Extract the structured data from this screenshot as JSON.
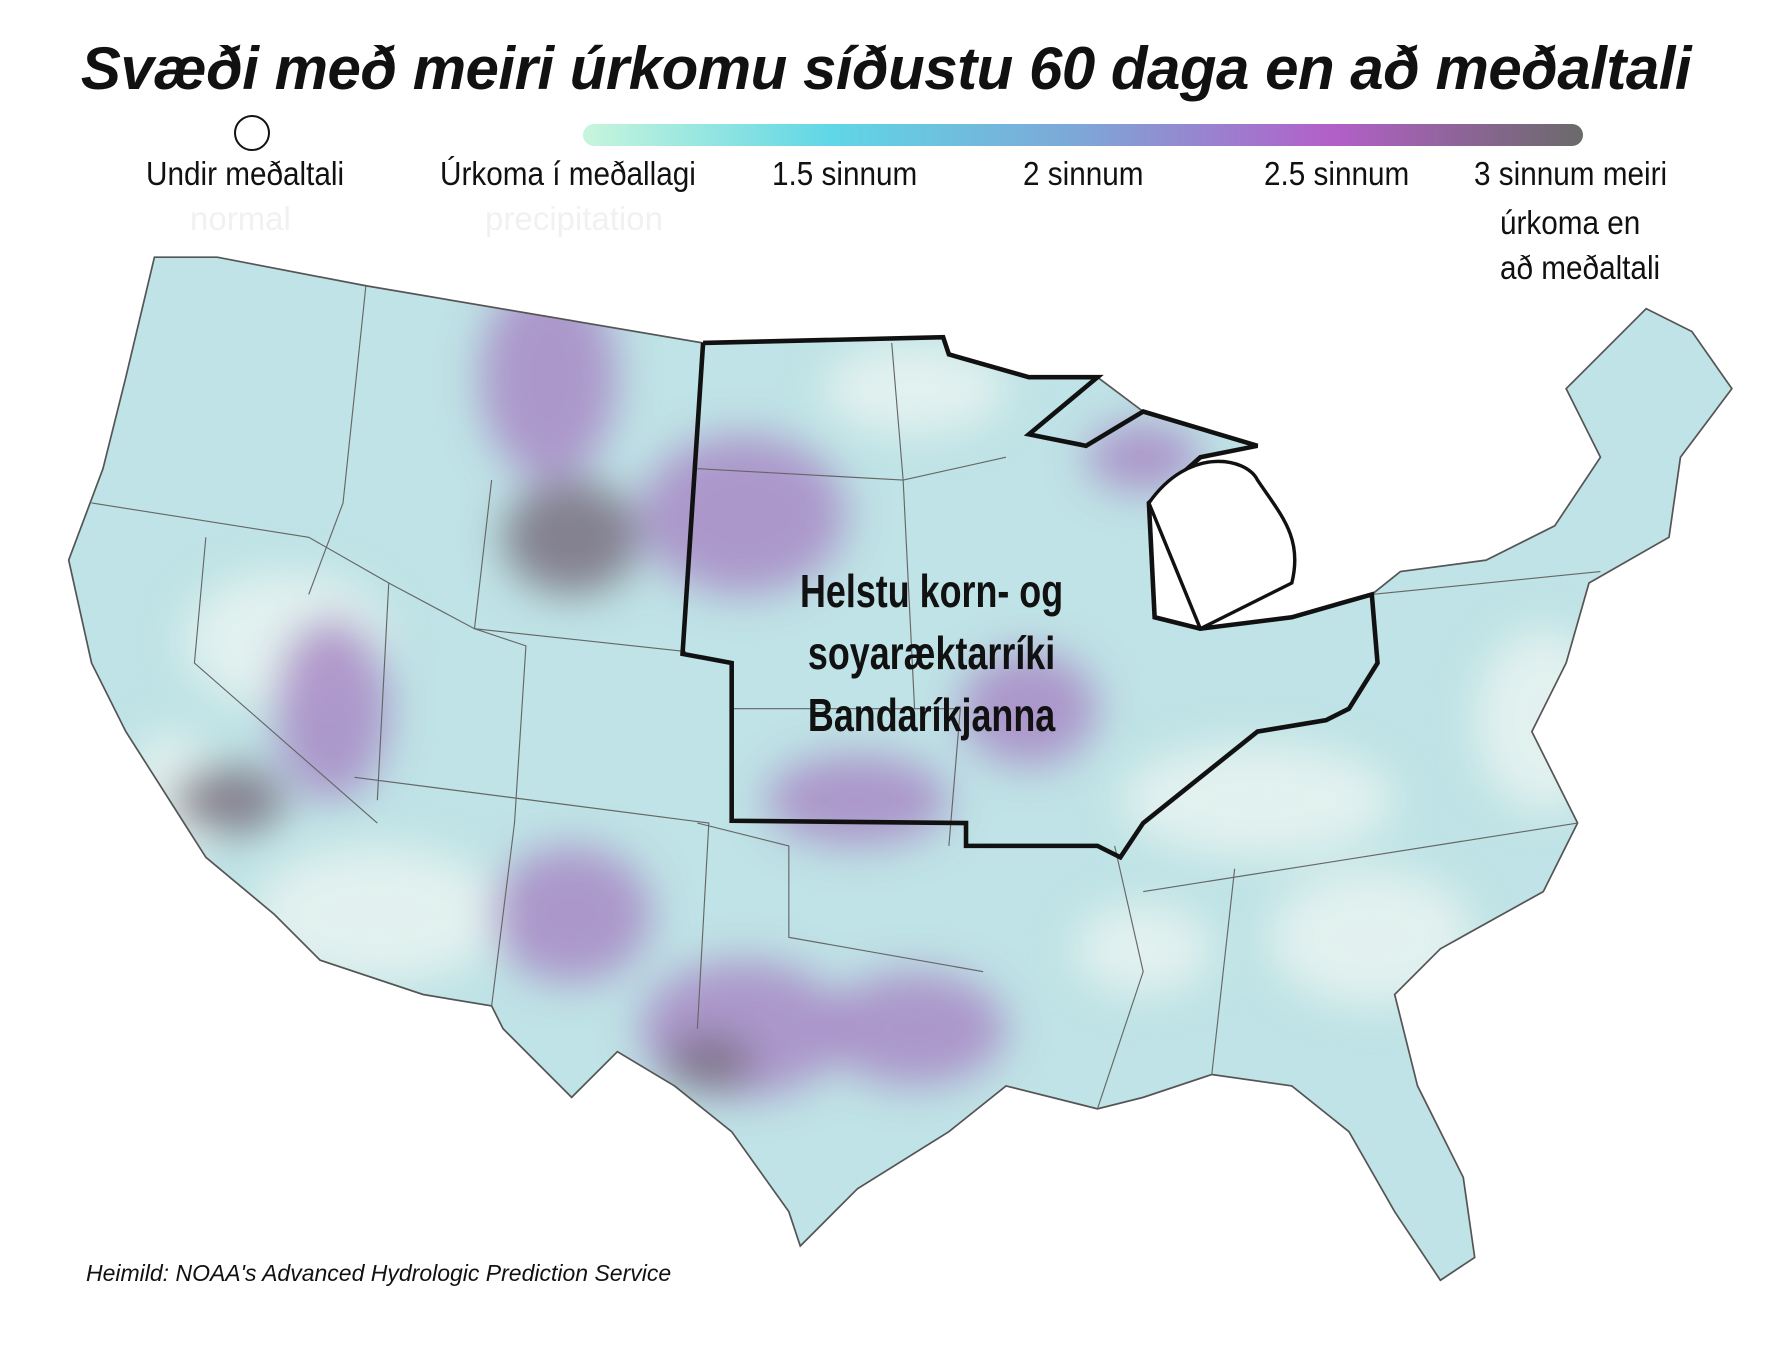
{
  "title": "Svæði með meiri úrkomu síðustu 60 daga en að meðaltali",
  "legend": {
    "colors": [
      "#ffffff",
      "#c8f5dc",
      "#5fd6e6",
      "#7ea6d6",
      "#b35fc8",
      "#6a6a6a"
    ],
    "labels": [
      "Undir meðaltali",
      "Úrkoma í meðallagi",
      "1.5 sinnum",
      "2 sinnum",
      "2.5 sinnum",
      "3 sinnum meiri"
    ],
    "last_label_continued": [
      "úrkoma en",
      "að meðaltali"
    ],
    "ghost_labels": [
      "normal",
      "precipitation"
    ]
  },
  "map": {
    "region_label": [
      "Helstu korn- og",
      "soyaræktarríki",
      "Bandaríkjanna"
    ],
    "fill_colors": {
      "base": "#bfe3e6",
      "light": "#e8f3f0",
      "purple": "#a889c6",
      "dark": "#7a7080"
    }
  },
  "source": "Heimild: NOAA's Advanced Hydrologic Prediction Service"
}
